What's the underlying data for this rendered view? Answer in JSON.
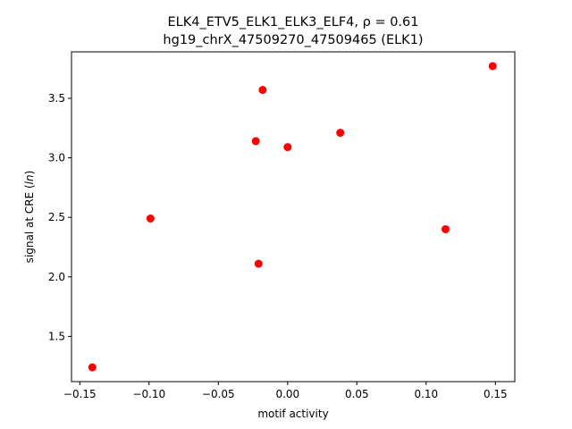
{
  "chart_data": {
    "type": "scatter",
    "title_line1_prefix": "ELK4_ETV5_ELK1_ELK3_ELF4, ",
    "title_line1_rho": "ρ = 0.61",
    "title_line2": "hg19_chrX_47509270_47509465 (ELK1)",
    "xlabel": "motif activity",
    "ylabel_prefix": "signal at CRE (",
    "ylabel_italic": "ln",
    "ylabel_suffix": ")",
    "xlim": [
      -0.156,
      0.164
    ],
    "ylim": [
      1.12,
      3.89
    ],
    "xticks": [
      -0.15,
      -0.1,
      -0.05,
      0.0,
      0.05,
      0.1,
      0.15
    ],
    "xtick_labels": [
      "−0.15",
      "−0.10",
      "−0.05",
      "0.00",
      "0.05",
      "0.10",
      "0.15"
    ],
    "yticks": [
      1.5,
      2.0,
      2.5,
      3.0,
      3.5
    ],
    "ytick_labels": [
      "1.5",
      "2.0",
      "2.5",
      "3.0",
      "3.5"
    ],
    "point_color": "#ff0000",
    "grid": false,
    "points": [
      {
        "x": -0.141,
        "y": 1.24
      },
      {
        "x": -0.099,
        "y": 2.49
      },
      {
        "x": -0.023,
        "y": 3.14
      },
      {
        "x": -0.021,
        "y": 2.11
      },
      {
        "x": -0.018,
        "y": 3.57
      },
      {
        "x": 0.0,
        "y": 3.09
      },
      {
        "x": 0.038,
        "y": 3.21
      },
      {
        "x": 0.114,
        "y": 2.4
      },
      {
        "x": 0.148,
        "y": 3.77
      }
    ]
  }
}
